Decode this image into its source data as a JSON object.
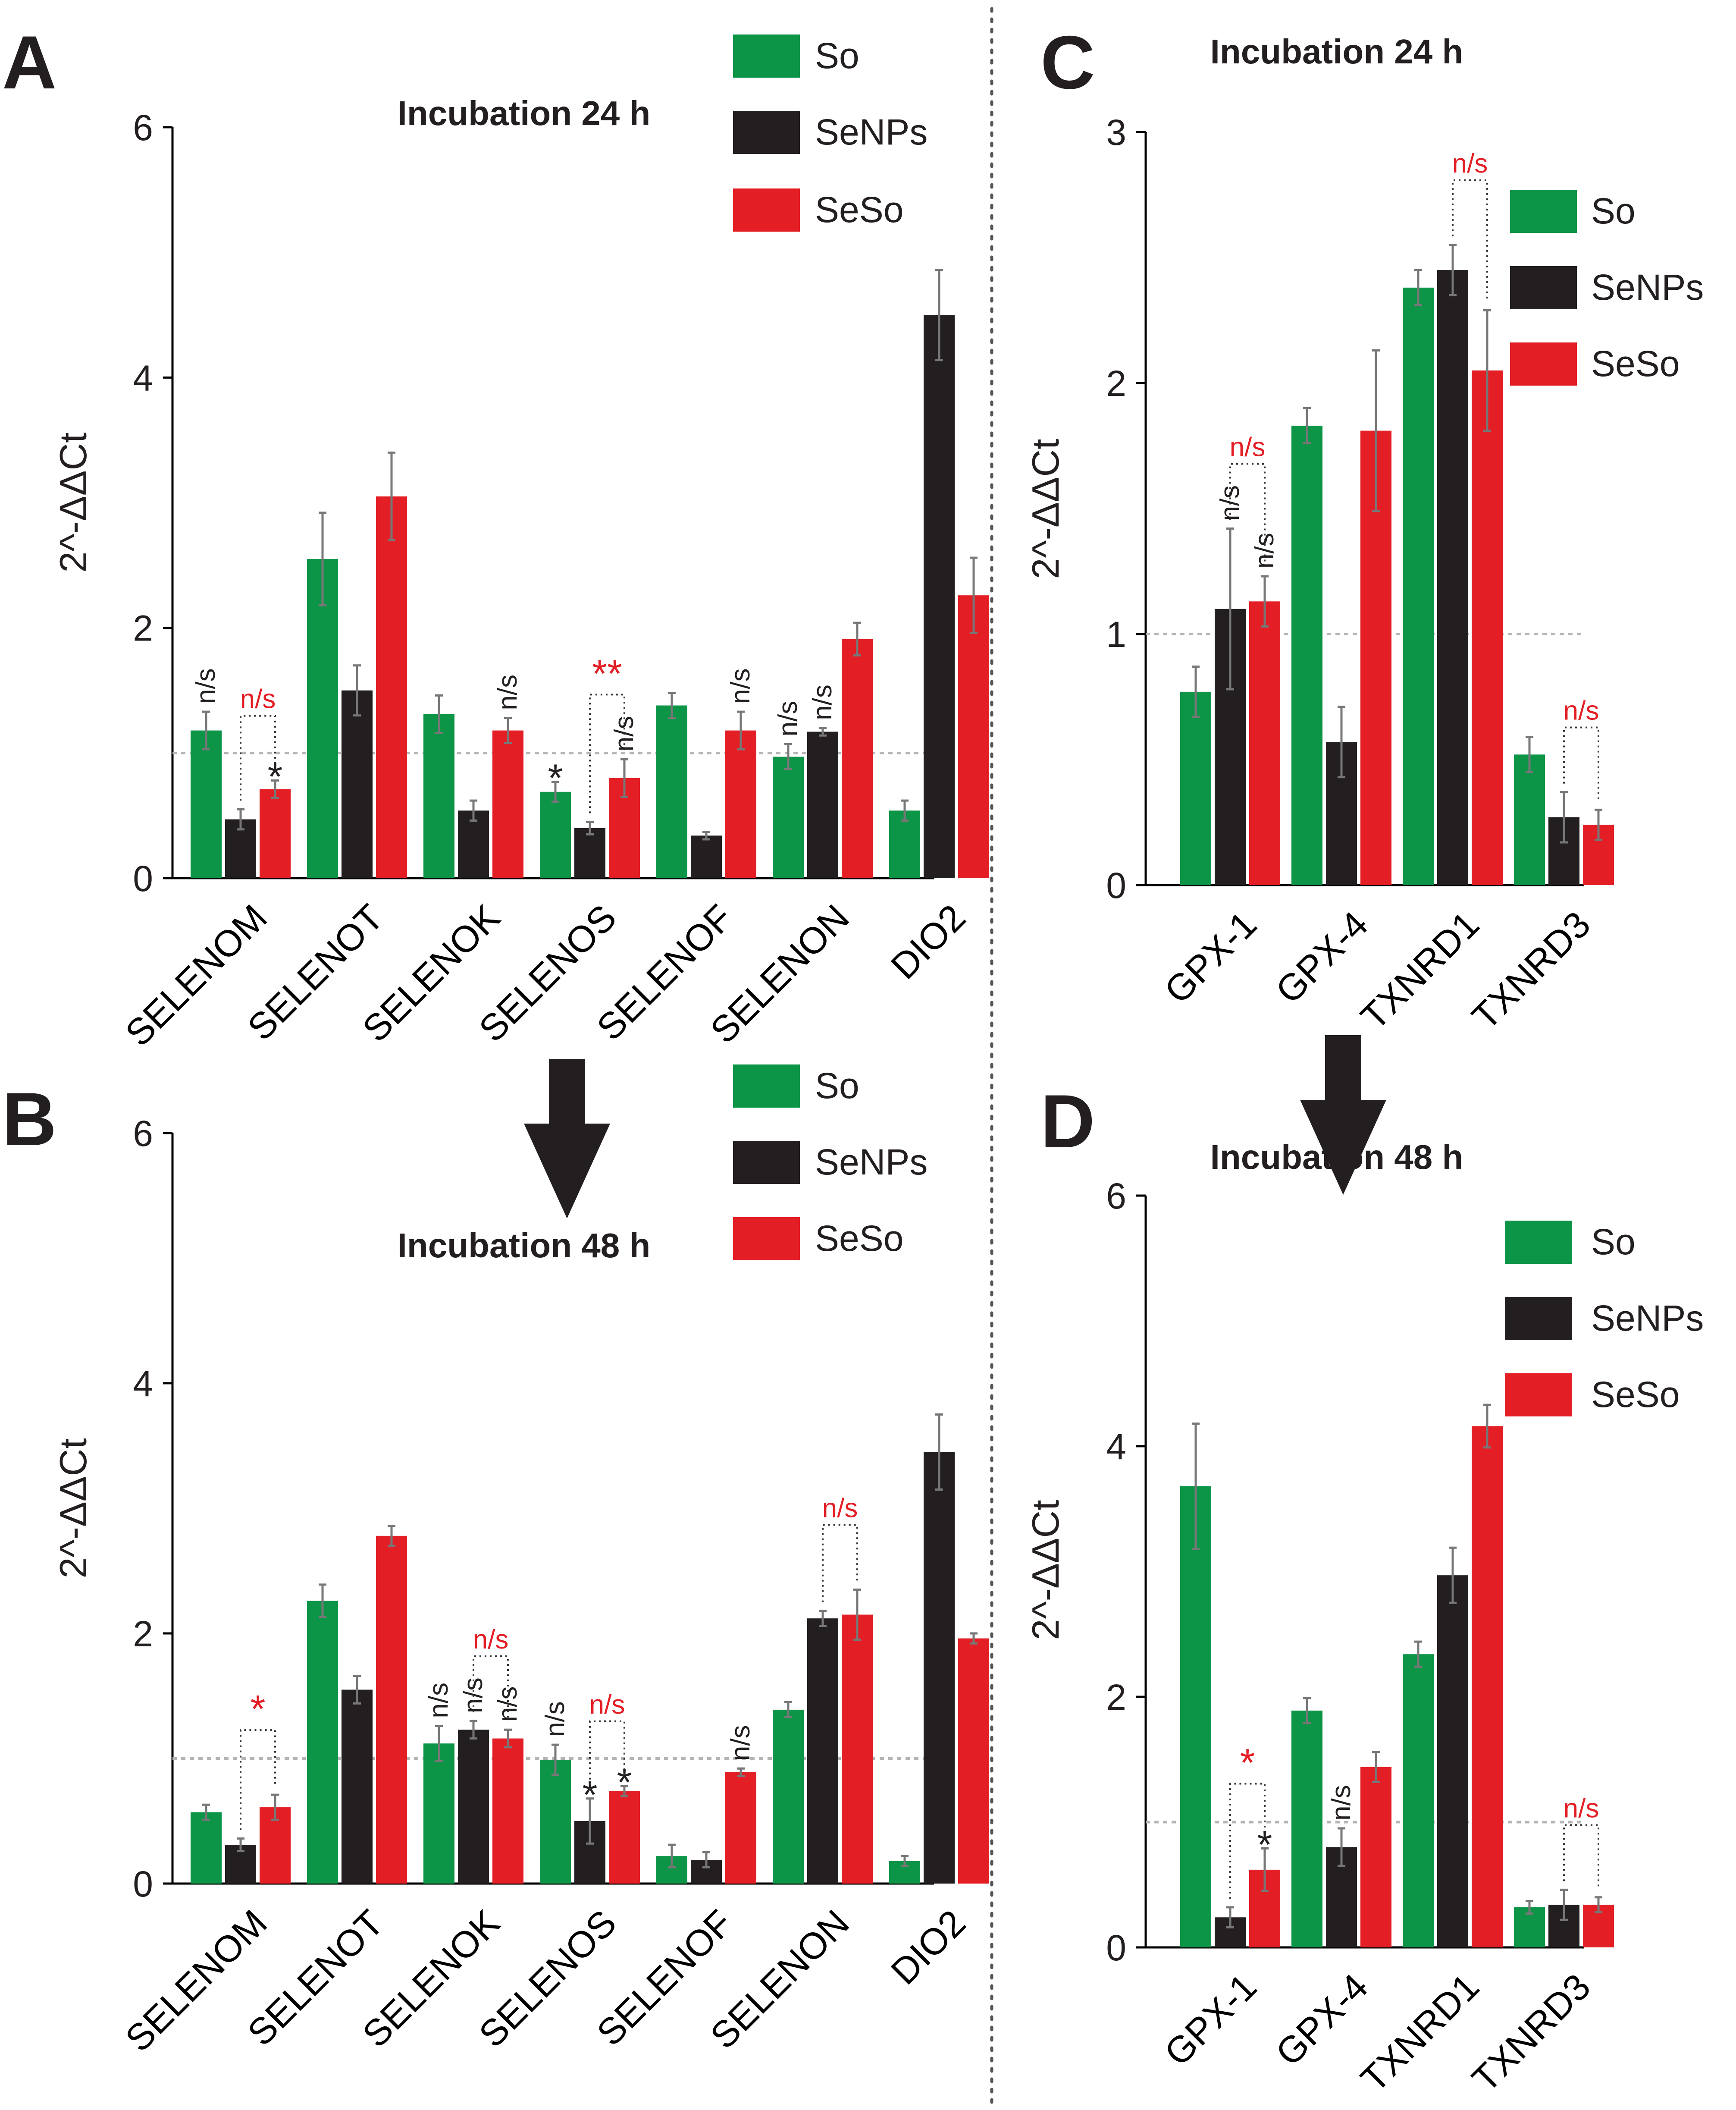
{
  "colors": {
    "So": "#0c9447",
    "SeNPs": "#231f20",
    "SeSo": "#e31e25",
    "annot_black": "#231f20",
    "annot_red": "#e31e25",
    "axis": "#000000",
    "error": "#777777",
    "ref_line": "#b5b5b5",
    "divider": "#555555",
    "arrow": "#231f20"
  },
  "chart_data": [
    {
      "panel": "A",
      "type": "bar",
      "title": "Incubation 24 h",
      "xlabel": "",
      "ylabel": "2^-ΔΔCt",
      "ylim": [
        0,
        6
      ],
      "yticks": [
        0,
        2,
        4,
        6
      ],
      "yticklabels": [
        "0",
        "2",
        "4",
        "6"
      ],
      "reference_line": 1,
      "legend": [
        "So",
        "SeNPs",
        "SeSo"
      ],
      "legend_position": "top-right",
      "categories": [
        "SELENOM",
        "SELENOT",
        "SELENOK",
        "SELENOS",
        "SELENOF",
        "SELENON",
        "DIO2"
      ],
      "series": [
        {
          "name": "So",
          "values": [
            1.18,
            2.55,
            1.31,
            0.69,
            1.38,
            0.97,
            0.54
          ],
          "errors": [
            0.15,
            0.37,
            0.15,
            0.08,
            0.1,
            0.1,
            0.08
          ]
        },
        {
          "name": "SeNPs",
          "values": [
            0.47,
            1.5,
            0.54,
            0.4,
            0.34,
            1.17,
            4.5
          ],
          "errors": [
            0.08,
            0.2,
            0.08,
            0.05,
            0.03,
            0.03,
            0.36
          ]
        },
        {
          "name": "SeSo",
          "values": [
            0.71,
            3.05,
            1.18,
            0.8,
            1.18,
            1.91,
            2.26
          ],
          "errors": [
            0.07,
            0.35,
            0.1,
            0.15,
            0.15,
            0.13,
            0.3
          ]
        }
      ],
      "annotations": [
        {
          "text": "n/s",
          "cat": 0,
          "bar": 0,
          "color": "black",
          "rot": true
        },
        {
          "text": "n/s",
          "cat": 0,
          "from": 1,
          "to": 2,
          "color": "red",
          "rot": false,
          "bracket": true
        },
        {
          "text": "*",
          "cat": 0,
          "bar": 2,
          "color": "black",
          "rot": false
        },
        {
          "text": "n/s",
          "cat": 2,
          "bar": 2,
          "color": "black",
          "rot": true
        },
        {
          "text": "*",
          "cat": 3,
          "bar": 0,
          "color": "black",
          "rot": false
        },
        {
          "text": "**",
          "cat": 3,
          "from": 1,
          "to": 2,
          "color": "red",
          "rot": false,
          "bracket": true
        },
        {
          "text": "n/s",
          "cat": 3,
          "bar": 2,
          "color": "black",
          "rot": true
        },
        {
          "text": "n/s",
          "cat": 4,
          "bar": 2,
          "color": "black",
          "rot": true
        },
        {
          "text": "n/s",
          "cat": 5,
          "bar": 0,
          "color": "black",
          "rot": true
        },
        {
          "text": "n/s",
          "cat": 5,
          "bar": 1,
          "color": "black",
          "rot": true
        }
      ]
    },
    {
      "panel": "B",
      "type": "bar",
      "title": "Incubation 48 h",
      "xlabel": "",
      "ylabel": "2^-ΔΔCt",
      "ylim": [
        0,
        6
      ],
      "yticks": [
        0,
        2,
        4,
        6
      ],
      "yticklabels": [
        "0",
        "2",
        "4",
        "6"
      ],
      "reference_line": 1,
      "legend": [
        "So",
        "SeNPs",
        "SeSo"
      ],
      "legend_position": "top-right",
      "categories": [
        "SELENOM",
        "SELENOT",
        "SELENOK",
        "SELENOS",
        "SELENOF",
        "SELENON",
        "DIO2"
      ],
      "series": [
        {
          "name": "So",
          "values": [
            0.57,
            2.26,
            1.12,
            0.99,
            0.22,
            1.39,
            0.18
          ],
          "errors": [
            0.06,
            0.13,
            0.14,
            0.12,
            0.09,
            0.06,
            0.04
          ]
        },
        {
          "name": "SeNPs",
          "values": [
            0.31,
            1.55,
            1.23,
            0.5,
            0.19,
            2.12,
            3.45
          ],
          "errors": [
            0.05,
            0.11,
            0.07,
            0.18,
            0.06,
            0.06,
            0.3
          ]
        },
        {
          "name": "SeSo",
          "values": [
            0.61,
            2.78,
            1.16,
            0.74,
            0.89,
            2.15,
            1.96
          ],
          "errors": [
            0.1,
            0.08,
            0.07,
            0.04,
            0.03,
            0.2,
            0.04
          ]
        }
      ],
      "annotations": [
        {
          "text": "*",
          "cat": 0,
          "from": 1,
          "to": 2,
          "color": "red",
          "rot": false,
          "bracket": true
        },
        {
          "text": "n/s",
          "cat": 2,
          "bar": 0,
          "color": "black",
          "rot": true
        },
        {
          "text": "n/s",
          "cat": 2,
          "bar": 1,
          "color": "black",
          "rot": true
        },
        {
          "text": "n/s",
          "cat": 2,
          "bar": 2,
          "color": "black",
          "rot": true
        },
        {
          "text": "n/s",
          "cat": 2,
          "from": 1,
          "to": 2,
          "color": "red",
          "rot": false,
          "bracket": true
        },
        {
          "text": "n/s",
          "cat": 3,
          "bar": 0,
          "color": "black",
          "rot": true
        },
        {
          "text": "*",
          "cat": 3,
          "bar": 1,
          "color": "black",
          "rot": false
        },
        {
          "text": "*",
          "cat": 3,
          "bar": 2,
          "color": "black",
          "rot": false
        },
        {
          "text": "n/s",
          "cat": 3,
          "from": 1,
          "to": 2,
          "color": "red",
          "rot": false,
          "bracket": true
        },
        {
          "text": "n/s",
          "cat": 4,
          "bar": 2,
          "color": "black",
          "rot": true
        },
        {
          "text": "n/s",
          "cat": 5,
          "from": 1,
          "to": 2,
          "color": "red",
          "rot": false,
          "bracket": true
        }
      ]
    },
    {
      "panel": "C",
      "type": "bar",
      "title": "Incubation 24 h",
      "xlabel": "",
      "ylabel": "2^-ΔΔCt",
      "ylim": [
        0,
        3
      ],
      "yticks": [
        0,
        1,
        2,
        3
      ],
      "yticklabels": [
        "0",
        "1",
        "2",
        "3"
      ],
      "reference_line": 1,
      "legend": [
        "So",
        "SeNPs",
        "SeSo"
      ],
      "legend_position": "top-right",
      "categories": [
        "GPX-1",
        "GPX-4",
        "TXNRD1",
        "TXNRD3"
      ],
      "series": [
        {
          "name": "So",
          "values": [
            0.77,
            1.83,
            2.38,
            0.52
          ],
          "errors": [
            0.1,
            0.07,
            0.07,
            0.07
          ]
        },
        {
          "name": "SeNPs",
          "values": [
            1.1,
            0.57,
            2.45,
            0.27
          ],
          "errors": [
            0.32,
            0.14,
            0.1,
            0.1
          ]
        },
        {
          "name": "SeSo",
          "values": [
            1.13,
            1.81,
            2.05,
            0.24
          ],
          "errors": [
            0.1,
            0.32,
            0.24,
            0.06
          ]
        }
      ],
      "annotations": [
        {
          "text": "n/s",
          "cat": 0,
          "from": 1,
          "to": 2,
          "color": "red",
          "rot": false,
          "bracket": true
        },
        {
          "text": "n/s",
          "cat": 0,
          "bar": 1,
          "color": "black",
          "rot": true
        },
        {
          "text": "n/s",
          "cat": 0,
          "bar": 2,
          "color": "black",
          "rot": true
        },
        {
          "text": "n/s",
          "cat": 2,
          "from": 1,
          "to": 2,
          "color": "red",
          "rot": false,
          "bracket": true
        },
        {
          "text": "n/s",
          "cat": 3,
          "from": 1,
          "to": 2,
          "color": "red",
          "rot": false,
          "bracket": true
        }
      ]
    },
    {
      "panel": "D",
      "type": "bar",
      "title": "Incubation 48 h",
      "xlabel": "",
      "ylabel": "2^-ΔΔCt",
      "ylim": [
        0,
        6
      ],
      "yticks": [
        0,
        2,
        4,
        6
      ],
      "yticklabels": [
        "0",
        "2",
        "4",
        "6"
      ],
      "reference_line": 1,
      "legend": [
        "So",
        "SeNPs",
        "SeSo"
      ],
      "legend_position": "top-right",
      "categories": [
        "GPX-1",
        "GPX-4",
        "TXNRD1",
        "TXNRD3"
      ],
      "series": [
        {
          "name": "So",
          "values": [
            3.68,
            1.89,
            2.34,
            0.32
          ],
          "errors": [
            0.5,
            0.1,
            0.1,
            0.05
          ]
        },
        {
          "name": "SeNPs",
          "values": [
            0.24,
            0.8,
            2.97,
            0.34
          ],
          "errors": [
            0.08,
            0.15,
            0.22,
            0.12
          ]
        },
        {
          "name": "SeSo",
          "values": [
            0.62,
            1.44,
            4.16,
            0.34
          ],
          "errors": [
            0.17,
            0.12,
            0.17,
            0.06
          ]
        }
      ],
      "annotations": [
        {
          "text": "*",
          "cat": 0,
          "from": 1,
          "to": 2,
          "color": "red",
          "rot": false,
          "bracket": true
        },
        {
          "text": "*",
          "cat": 0,
          "bar": 2,
          "color": "black",
          "rot": false
        },
        {
          "text": "n/s",
          "cat": 1,
          "bar": 1,
          "color": "black",
          "rot": true
        },
        {
          "text": "n/s",
          "cat": 3,
          "from": 1,
          "to": 2,
          "color": "red",
          "rot": false,
          "bracket": true
        }
      ]
    }
  ]
}
